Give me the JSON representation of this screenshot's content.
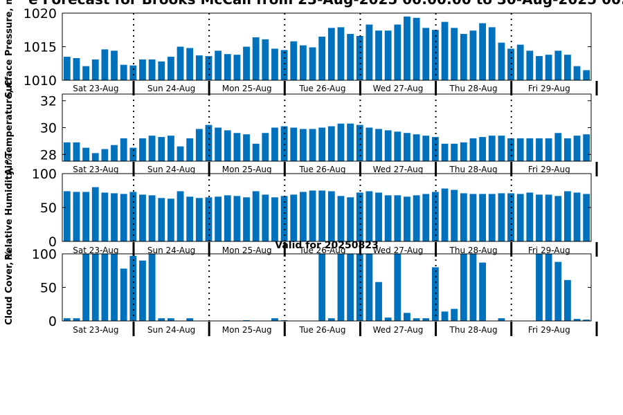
{
  "figure": {
    "title": "e Forecast for Brooks McCall from 23-Aug-2025 00:00:00 to 30-Aug-2025 00:",
    "panel4_title": "Valid for 20250823"
  },
  "colors": {
    "bar": "#0072bd",
    "axis": "#000000"
  },
  "chart_data": [
    {
      "type": "bar",
      "ylabel": "Surface Pressure, m",
      "ylim": [
        1010,
        1020
      ],
      "yticks": [
        1010,
        1015,
        1020
      ],
      "grid": false,
      "day_labels": [
        "Sat 23-Aug",
        "Sun 24-Aug",
        "Mon 25-Aug",
        "Tue 26-Aug",
        "Wed 27-Aug",
        "Thu 28-Aug",
        "Fri 29-Aug"
      ],
      "values": [
        1013.5,
        1013.3,
        1012.1,
        1013.1,
        1014.6,
        1014.4,
        1012.3,
        1012.2,
        1013.1,
        1013.1,
        1012.8,
        1013.5,
        1015.0,
        1014.8,
        1013.7,
        1013.6,
        1014.4,
        1013.9,
        1013.8,
        1015.0,
        1016.4,
        1016.1,
        1014.7,
        1014.5,
        1015.8,
        1015.2,
        1014.9,
        1016.5,
        1017.8,
        1017.9,
        1016.9,
        1016.6,
        1018.3,
        1017.4,
        1017.4,
        1018.3,
        1019.5,
        1019.3,
        1017.8,
        1017.5,
        1018.7,
        1017.8,
        1016.9,
        1017.4,
        1018.5,
        1017.9,
        1015.6,
        1014.7,
        1015.3,
        1014.4,
        1013.6,
        1013.8,
        1014.4,
        1013.8,
        1012.1,
        1011.5
      ]
    },
    {
      "type": "bar",
      "ylabel": "Air Temperature, C",
      "ylim": [
        27.5,
        32.5
      ],
      "yticks": [
        28,
        30,
        32
      ],
      "grid": false,
      "day_labels": [
        "Sat 23-Aug",
        "Sun 24-Aug",
        "Mon 25-Aug",
        "Tue 26-Aug",
        "Wed 27-Aug",
        "Thu 28-Aug",
        "Fri 29-Aug"
      ],
      "values": [
        28.9,
        28.9,
        28.5,
        28.1,
        28.4,
        28.7,
        29.2,
        28.5,
        29.2,
        29.4,
        29.3,
        29.4,
        28.6,
        29.2,
        29.9,
        30.2,
        30.0,
        29.8,
        29.6,
        29.5,
        28.8,
        29.6,
        30.0,
        30.1,
        30.0,
        29.9,
        29.9,
        30.0,
        30.1,
        30.3,
        30.3,
        30.2,
        30.0,
        29.9,
        29.8,
        29.7,
        29.6,
        29.5,
        29.4,
        29.3,
        28.8,
        28.8,
        28.9,
        29.2,
        29.3,
        29.4,
        29.4,
        29.2,
        29.2,
        29.2,
        29.2,
        29.2,
        29.6,
        29.2,
        29.4,
        29.5
      ]
    },
    {
      "type": "bar",
      "ylabel": "Relative Humidity, %",
      "ylim": [
        0,
        100
      ],
      "yticks": [
        0,
        50,
        100
      ],
      "grid": false,
      "day_labels": [
        "Sat 23-Aug",
        "Sun 24-Aug",
        "Mon 25-Aug",
        "Tue 26-Aug",
        "Wed 27-Aug",
        "Thu 28-Aug",
        "Fri 29-Aug"
      ],
      "values": [
        74,
        73,
        73,
        80,
        72,
        71,
        70,
        73,
        69,
        68,
        64,
        63,
        74,
        66,
        64,
        65,
        66,
        68,
        67,
        65,
        74,
        69,
        65,
        67,
        69,
        73,
        75,
        75,
        74,
        67,
        65,
        72,
        74,
        72,
        68,
        68,
        66,
        68,
        70,
        73,
        78,
        76,
        71,
        70,
        70,
        70,
        71,
        71,
        70,
        72,
        69,
        69,
        67,
        74,
        72,
        70
      ]
    },
    {
      "type": "bar",
      "ylabel": "Cloud Cover, %",
      "ylim": [
        0,
        100
      ],
      "yticks": [
        0,
        50,
        100
      ],
      "grid": false,
      "day_labels": [
        "Sat 23-Aug",
        "Sun 24-Aug",
        "Mon 25-Aug",
        "Tue 26-Aug",
        "Wed 27-Aug",
        "Thu 28-Aug",
        "Fri 29-Aug"
      ],
      "values": [
        4,
        4,
        100,
        100,
        100,
        100,
        78,
        97,
        90,
        100,
        4,
        4,
        0,
        4,
        0,
        0,
        0,
        0,
        0,
        1,
        0,
        0,
        4,
        1,
        0,
        0,
        0,
        100,
        4,
        100,
        100,
        100,
        100,
        58,
        5,
        100,
        12,
        4,
        4,
        80,
        14,
        18,
        100,
        100,
        87,
        0,
        4,
        0,
        0,
        0,
        100,
        100,
        88,
        61,
        3,
        2
      ]
    }
  ]
}
